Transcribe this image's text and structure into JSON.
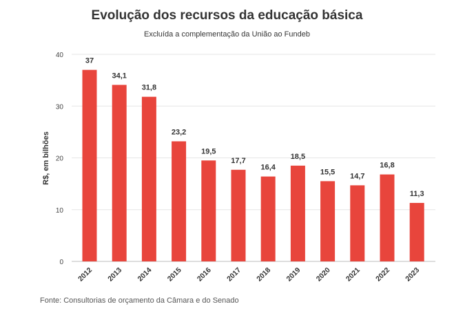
{
  "chart_data": {
    "type": "bar",
    "title": "Evolução dos recursos da educação básica",
    "subtitle": "Excluída a complementação da União ao Fundeb",
    "xlabel": "",
    "ylabel": "R$, em bilhões",
    "categories": [
      "2012",
      "2013",
      "2014",
      "2015",
      "2016",
      "2017",
      "2018",
      "2019",
      "2020",
      "2021",
      "2022",
      "2023"
    ],
    "values": [
      37,
      34.1,
      31.8,
      23.2,
      19.5,
      17.7,
      16.4,
      18.5,
      15.5,
      14.7,
      16.8,
      11.3
    ],
    "value_labels": [
      "37",
      "34,1",
      "31,8",
      "23,2",
      "19,5",
      "17,7",
      "16,4",
      "18,5",
      "15,5",
      "14,7",
      "16,8",
      "11,3"
    ],
    "y_ticks": [
      0,
      10,
      20,
      30,
      40
    ],
    "ylim": [
      0,
      40
    ],
    "grid": true,
    "bar_color": "#e8453c",
    "source": "Fonte: Consultorias de orçamento da Câmara e do Senado"
  }
}
